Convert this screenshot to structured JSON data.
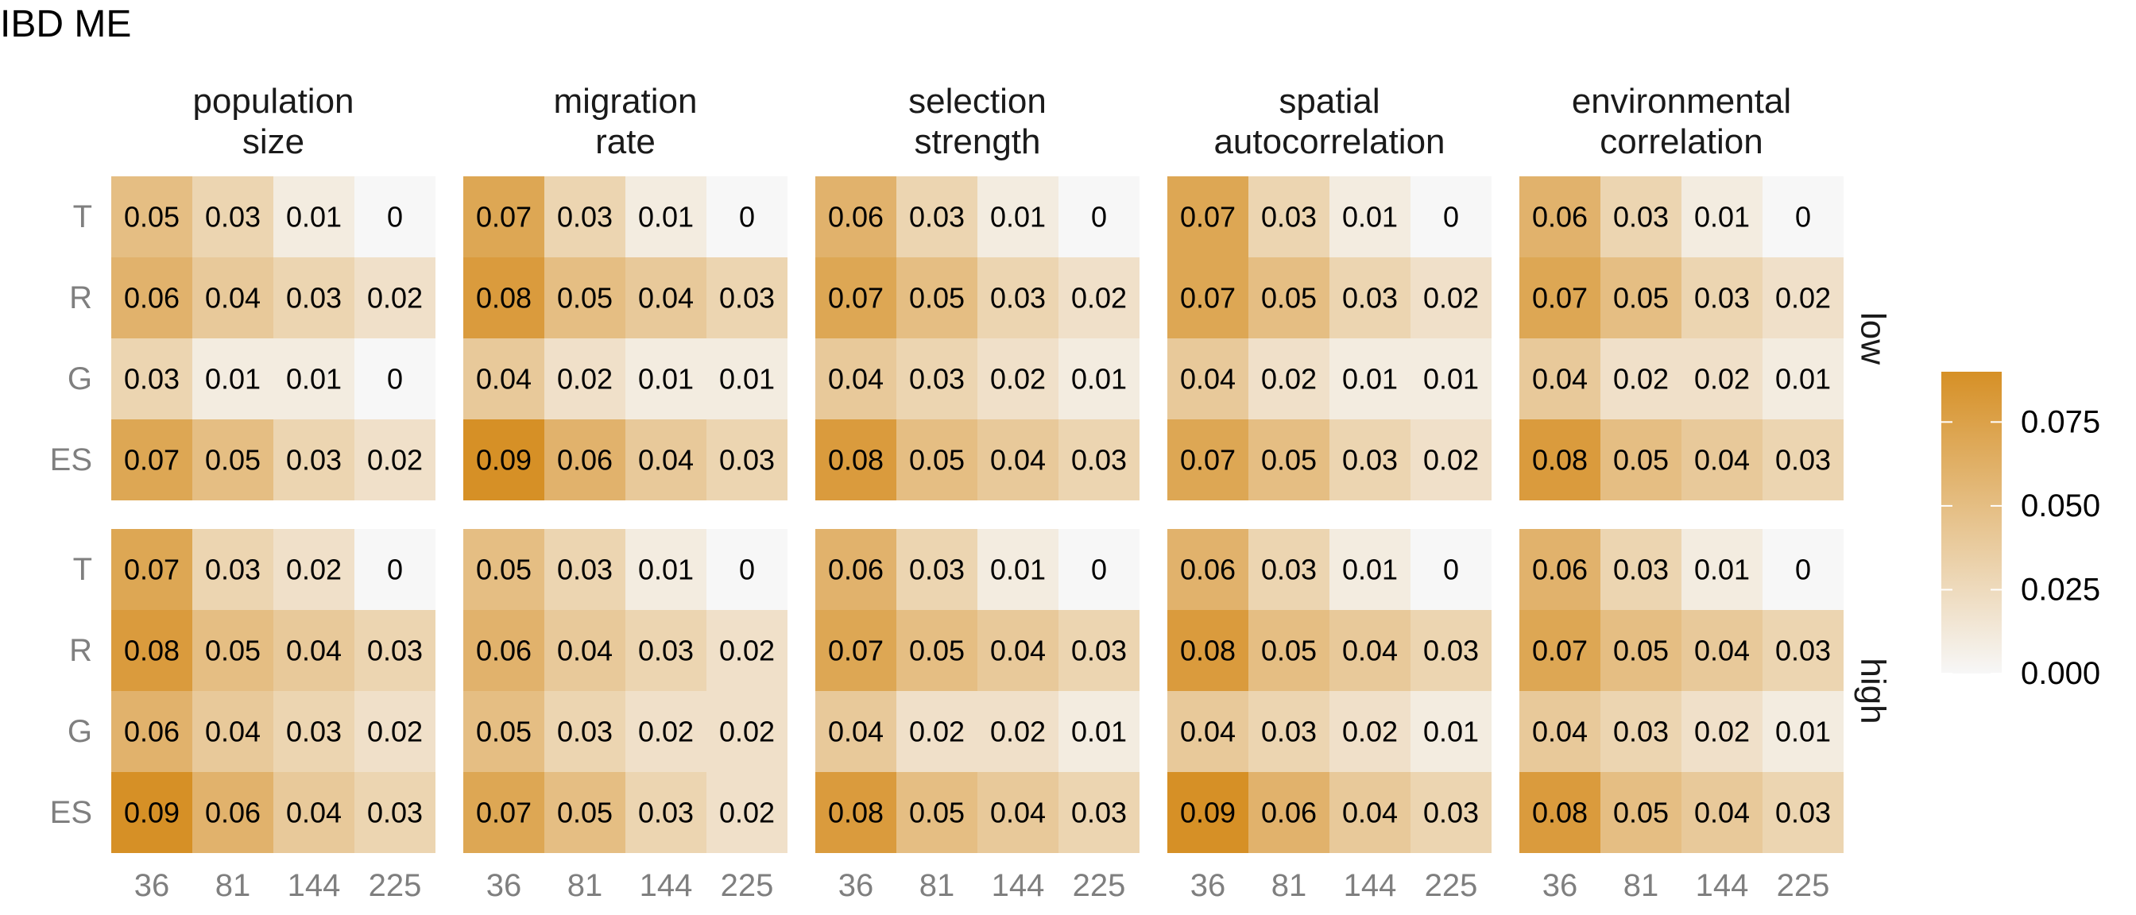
{
  "chart_data": {
    "type": "heatmap",
    "title": "IBD ME",
    "columns": [
      {
        "label_lines": [
          "population",
          "size"
        ]
      },
      {
        "label_lines": [
          "migration",
          "rate"
        ]
      },
      {
        "label_lines": [
          "selection",
          "strength"
        ]
      },
      {
        "label_lines": [
          "spatial",
          "autocorrelation"
        ]
      },
      {
        "label_lines": [
          "environmental",
          "correlation"
        ]
      }
    ],
    "rows": [
      "low",
      "high"
    ],
    "y_categories": [
      "T",
      "R",
      "G",
      "ES"
    ],
    "x_categories": [
      "36",
      "81",
      "144",
      "225"
    ],
    "values": [
      [
        [
          [
            "0.05",
            "0.03",
            "0.01",
            "0"
          ],
          [
            "0.06",
            "0.04",
            "0.03",
            "0.02"
          ],
          [
            "0.03",
            "0.01",
            "0.01",
            "0"
          ],
          [
            "0.07",
            "0.05",
            "0.03",
            "0.02"
          ]
        ],
        [
          [
            "0.07",
            "0.03",
            "0.01",
            "0"
          ],
          [
            "0.08",
            "0.05",
            "0.04",
            "0.03"
          ],
          [
            "0.04",
            "0.02",
            "0.01",
            "0.01"
          ],
          [
            "0.09",
            "0.06",
            "0.04",
            "0.03"
          ]
        ],
        [
          [
            "0.06",
            "0.03",
            "0.01",
            "0"
          ],
          [
            "0.07",
            "0.05",
            "0.03",
            "0.02"
          ],
          [
            "0.04",
            "0.03",
            "0.02",
            "0.01"
          ],
          [
            "0.08",
            "0.05",
            "0.04",
            "0.03"
          ]
        ],
        [
          [
            "0.07",
            "0.03",
            "0.01",
            "0"
          ],
          [
            "0.07",
            "0.05",
            "0.03",
            "0.02"
          ],
          [
            "0.04",
            "0.02",
            "0.01",
            "0.01"
          ],
          [
            "0.07",
            "0.05",
            "0.03",
            "0.02"
          ]
        ],
        [
          [
            "0.06",
            "0.03",
            "0.01",
            "0"
          ],
          [
            "0.07",
            "0.05",
            "0.03",
            "0.02"
          ],
          [
            "0.04",
            "0.02",
            "0.02",
            "0.01"
          ],
          [
            "0.08",
            "0.05",
            "0.04",
            "0.03"
          ]
        ]
      ],
      [
        [
          [
            "0.07",
            "0.03",
            "0.02",
            "0"
          ],
          [
            "0.08",
            "0.05",
            "0.04",
            "0.03"
          ],
          [
            "0.06",
            "0.04",
            "0.03",
            "0.02"
          ],
          [
            "0.09",
            "0.06",
            "0.04",
            "0.03"
          ]
        ],
        [
          [
            "0.05",
            "0.03",
            "0.01",
            "0"
          ],
          [
            "0.06",
            "0.04",
            "0.03",
            "0.02"
          ],
          [
            "0.05",
            "0.03",
            "0.02",
            "0.02"
          ],
          [
            "0.07",
            "0.05",
            "0.03",
            "0.02"
          ]
        ],
        [
          [
            "0.06",
            "0.03",
            "0.01",
            "0"
          ],
          [
            "0.07",
            "0.05",
            "0.04",
            "0.03"
          ],
          [
            "0.04",
            "0.02",
            "0.02",
            "0.01"
          ],
          [
            "0.08",
            "0.05",
            "0.04",
            "0.03"
          ]
        ],
        [
          [
            "0.06",
            "0.03",
            "0.01",
            "0"
          ],
          [
            "0.08",
            "0.05",
            "0.04",
            "0.03"
          ],
          [
            "0.04",
            "0.03",
            "0.02",
            "0.01"
          ],
          [
            "0.09",
            "0.06",
            "0.04",
            "0.03"
          ]
        ],
        [
          [
            "0.06",
            "0.03",
            "0.01",
            "0"
          ],
          [
            "0.07",
            "0.05",
            "0.04",
            "0.03"
          ],
          [
            "0.04",
            "0.03",
            "0.02",
            "0.01"
          ],
          [
            "0.08",
            "0.05",
            "0.04",
            "0.03"
          ]
        ]
      ]
    ],
    "color_scale": {
      "low_color": "#f7f7f7",
      "high_color": "#d69026",
      "domain": [
        0,
        0.09
      ],
      "ticks": [
        "0.000",
        "0.025",
        "0.050",
        "0.075"
      ]
    }
  }
}
